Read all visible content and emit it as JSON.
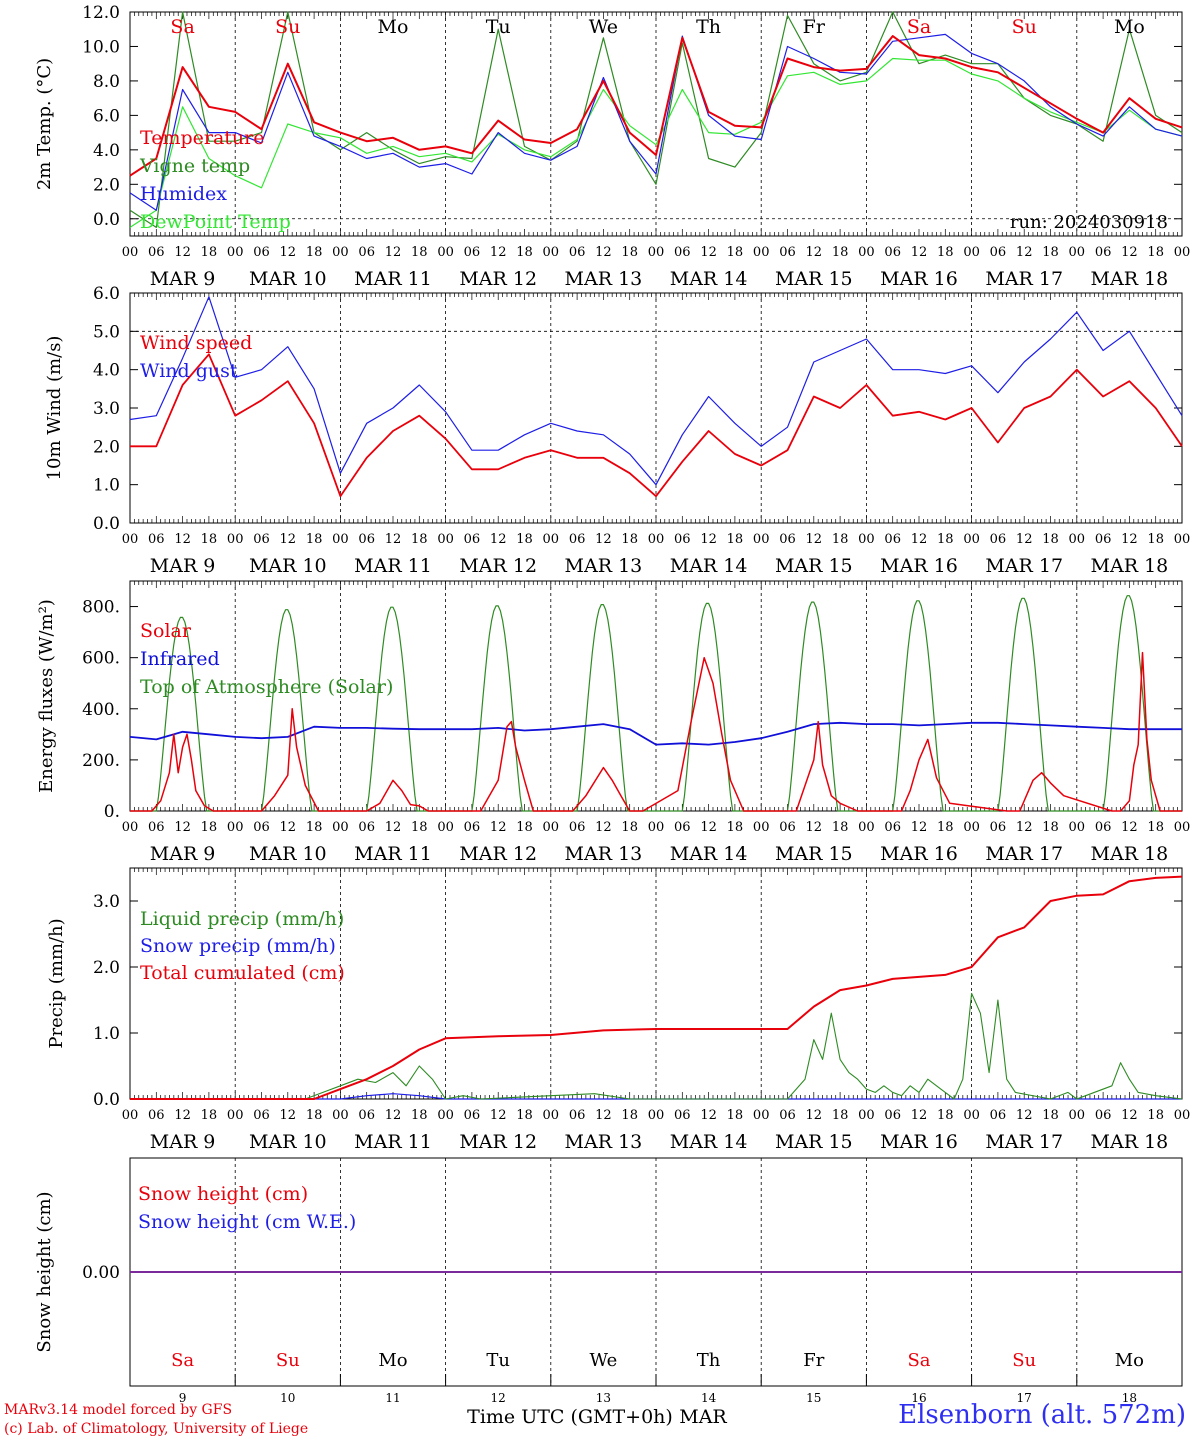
{
  "footer": {
    "credit_line1": "MARv3.14 model forced by GFS",
    "credit_line2": "(c) Lab. of Climatology, University of Liege",
    "xaxis_title": "Time UTC (GMT+0h)",
    "xaxis_month": "MAR",
    "station": "Elsenborn (alt. 572m)",
    "run": "run: 2024030918"
  },
  "colors": {
    "temperature": "#e8000b",
    "vigne": "#2e8b23",
    "humidex": "#1e1ee6",
    "dewpoint": "#33e633",
    "wind_speed": "#e8000b",
    "wind_gust": "#1e1ee6",
    "solar": "#e8000b",
    "infrared": "#1010d8",
    "toa": "#2e8b23",
    "liquid": "#2e8b23",
    "snow_precip": "#1e1ee6",
    "cumulated": "#e8000b",
    "snow_height_line": "#7a2a9a",
    "weekend_day": "#e8000b",
    "weekday": "#000000"
  },
  "axis": {
    "hour_ticks": [
      "00",
      "06",
      "12",
      "18"
    ],
    "final_hour": "00",
    "dates": [
      "MAR  9",
      "MAR 10",
      "MAR 11",
      "MAR 12",
      "MAR 13",
      "MAR 14",
      "MAR 15",
      "MAR 16",
      "MAR 17",
      "MAR 18"
    ],
    "weekdays": [
      "Sa",
      "Su",
      "Mo",
      "Tu",
      "We",
      "Th",
      "Fr",
      "Sa",
      "Su",
      "Mo"
    ],
    "weekend_flags": [
      true,
      true,
      false,
      false,
      false,
      false,
      false,
      true,
      true,
      false
    ],
    "day_numbers": [
      "9",
      "10",
      "11",
      "12",
      "13",
      "14",
      "15",
      "16",
      "17",
      "18"
    ]
  },
  "chart_data": [
    {
      "type": "line",
      "title": "",
      "ylabel": "2m Temp. (°C)",
      "xlabel": "",
      "ylim": [
        -1.0,
        12.0
      ],
      "yticks": [
        "0.0",
        "2.0",
        "4.0",
        "6.0",
        "8.0",
        "10.0",
        "12.0"
      ],
      "reference_line": 0.0,
      "x_unit": "hours since 2024-03-09 00 UTC",
      "x": [
        0,
        6,
        12,
        18,
        24,
        30,
        36,
        42,
        48,
        54,
        60,
        66,
        72,
        78,
        84,
        90,
        96,
        102,
        108,
        114,
        120,
        126,
        132,
        138,
        144,
        150,
        156,
        162,
        168,
        174,
        180,
        186,
        192,
        198,
        204,
        210,
        216,
        222,
        228,
        234,
        240
      ],
      "legend": [
        "Temperature",
        "Vigne temp",
        "Humidex",
        "DewPoint Temp"
      ],
      "series": [
        {
          "name": "Temperature",
          "values": [
            2.5,
            3.5,
            8.8,
            6.5,
            6.2,
            5.2,
            9.0,
            5.6,
            5.0,
            4.5,
            4.7,
            4.0,
            4.2,
            3.8,
            5.7,
            4.6,
            4.4,
            5.2,
            8.0,
            5.0,
            3.7,
            10.5,
            6.2,
            5.4,
            5.3,
            9.3,
            8.8,
            8.6,
            8.7,
            10.6,
            9.5,
            9.3,
            8.8,
            8.5,
            7.6,
            6.7,
            5.8,
            5.0,
            7.0,
            5.8,
            5.3
          ]
        },
        {
          "name": "Vigne temp",
          "values": [
            0.5,
            -0.5,
            12.0,
            4.5,
            4.5,
            5.0,
            12.0,
            5.0,
            4.0,
            5.0,
            4.0,
            3.2,
            3.6,
            3.5,
            11.0,
            4.2,
            3.4,
            4.5,
            10.5,
            4.5,
            2.0,
            10.2,
            3.5,
            3.0,
            5.0,
            11.8,
            9.0,
            8.0,
            8.5,
            12.0,
            9.0,
            9.5,
            9.0,
            9.0,
            7.0,
            6.0,
            5.5,
            4.5,
            11.0,
            6.0,
            5.0
          ]
        },
        {
          "name": "Humidex",
          "values": [
            1.5,
            0.5,
            7.5,
            5.0,
            5.0,
            4.4,
            8.5,
            4.8,
            4.2,
            3.5,
            3.8,
            3.0,
            3.2,
            2.6,
            5.0,
            3.8,
            3.4,
            4.2,
            8.2,
            4.5,
            2.6,
            10.6,
            6.0,
            4.8,
            4.6,
            10.0,
            9.3,
            8.5,
            8.4,
            10.3,
            10.5,
            10.7,
            9.6,
            9.0,
            8.0,
            6.5,
            5.5,
            4.8,
            6.5,
            5.2,
            4.8
          ]
        },
        {
          "name": "DewPoint Temp",
          "values": [
            -0.5,
            0.5,
            6.5,
            3.5,
            2.5,
            1.8,
            5.5,
            5.0,
            4.7,
            3.8,
            4.2,
            3.6,
            3.8,
            3.3,
            4.9,
            4.0,
            3.6,
            4.6,
            7.5,
            5.4,
            4.3,
            7.5,
            5.0,
            4.9,
            5.6,
            8.3,
            8.5,
            7.8,
            8.0,
            9.3,
            9.2,
            9.2,
            8.4,
            8.0,
            7.0,
            6.2,
            5.6,
            5.0,
            6.3,
            5.2,
            4.8
          ]
        }
      ]
    },
    {
      "type": "line",
      "title": "",
      "ylabel": "10m Wind (m/s)",
      "xlabel": "",
      "ylim": [
        0.0,
        6.0
      ],
      "yticks": [
        "0.0",
        "1.0",
        "2.0",
        "3.0",
        "4.0",
        "5.0",
        "6.0"
      ],
      "reference_line": 5.0,
      "x_unit": "hours since 2024-03-09 00 UTC",
      "x": [
        0,
        6,
        12,
        18,
        24,
        30,
        36,
        42,
        48,
        54,
        60,
        66,
        72,
        78,
        84,
        90,
        96,
        102,
        108,
        114,
        120,
        126,
        132,
        138,
        144,
        150,
        156,
        162,
        168,
        174,
        180,
        186,
        192,
        198,
        204,
        210,
        216,
        222,
        228,
        234,
        240
      ],
      "legend": [
        "Wind speed",
        "Wind gust"
      ],
      "series": [
        {
          "name": "Wind speed",
          "values": [
            2.0,
            2.0,
            3.6,
            4.4,
            2.8,
            3.2,
            3.7,
            2.6,
            0.7,
            1.7,
            2.4,
            2.8,
            2.2,
            1.4,
            1.4,
            1.7,
            1.9,
            1.7,
            1.7,
            1.3,
            0.7,
            1.6,
            2.4,
            1.8,
            1.5,
            1.9,
            3.3,
            3.0,
            3.6,
            2.8,
            2.9,
            2.7,
            3.0,
            2.1,
            3.0,
            3.3,
            4.0,
            3.3,
            3.7,
            3.0,
            2.0
          ]
        },
        {
          "name": "Wind gust",
          "values": [
            2.7,
            2.8,
            4.3,
            5.9,
            3.8,
            4.0,
            4.6,
            3.5,
            1.3,
            2.6,
            3.0,
            3.6,
            2.9,
            1.9,
            1.9,
            2.3,
            2.6,
            2.4,
            2.3,
            1.8,
            1.0,
            2.3,
            3.3,
            2.6,
            2.0,
            2.5,
            4.2,
            4.5,
            4.8,
            4.0,
            4.0,
            3.9,
            4.1,
            3.4,
            4.2,
            4.8,
            5.5,
            4.5,
            5.0,
            3.9,
            2.8
          ]
        }
      ]
    },
    {
      "type": "line",
      "title": "",
      "ylabel": "Energy fluxes (W/m²)",
      "xlabel": "",
      "ylim": [
        0,
        900
      ],
      "yticks": [
        "0.",
        "200.",
        "400.",
        "600.",
        "800."
      ],
      "x_unit": "hours since 2024-03-09 00 UTC",
      "legend": [
        "Solar",
        "Infrared",
        "Top of Atmosphere (Solar)"
      ],
      "series": [
        {
          "name": "Solar",
          "x": [
            0,
            5,
            7,
            9,
            10,
            11,
            12,
            13,
            14,
            15,
            17,
            19,
            30,
            33,
            36,
            37,
            38,
            40,
            43,
            54,
            57,
            60,
            62,
            64,
            66,
            68,
            72,
            80,
            84,
            86,
            87,
            88,
            90,
            92,
            101,
            104,
            108,
            110,
            112,
            114,
            117,
            125,
            128,
            131,
            133,
            135,
            137,
            140,
            152,
            155,
            156,
            157,
            158,
            160,
            162,
            166,
            176,
            178,
            180,
            182,
            184,
            187,
            200,
            203,
            205,
            206,
            208,
            210,
            213,
            224,
            226,
            228,
            229,
            230,
            231,
            232,
            233,
            235,
            240
          ],
          "values": [
            0,
            0,
            40,
            150,
            300,
            150,
            250,
            300,
            200,
            80,
            20,
            0,
            0,
            60,
            140,
            400,
            250,
            100,
            0,
            0,
            30,
            120,
            80,
            25,
            20,
            0,
            0,
            0,
            120,
            330,
            350,
            250,
            120,
            0,
            0,
            60,
            170,
            120,
            60,
            0,
            0,
            80,
            350,
            600,
            500,
            300,
            120,
            0,
            0,
            150,
            200,
            350,
            180,
            60,
            30,
            0,
            0,
            80,
            200,
            280,
            130,
            30,
            0,
            0,
            80,
            120,
            150,
            110,
            60,
            0,
            0,
            40,
            180,
            260,
            620,
            280,
            120,
            0,
            0
          ]
        },
        {
          "name": "Infrared",
          "x": [
            0,
            6,
            12,
            18,
            24,
            30,
            36,
            42,
            48,
            54,
            60,
            66,
            72,
            78,
            84,
            90,
            96,
            102,
            108,
            114,
            120,
            126,
            132,
            138,
            144,
            150,
            156,
            162,
            168,
            174,
            180,
            186,
            192,
            198,
            204,
            210,
            216,
            222,
            228,
            234,
            240
          ],
          "values": [
            290,
            280,
            310,
            300,
            290,
            285,
            290,
            330,
            325,
            325,
            322,
            320,
            320,
            320,
            325,
            315,
            320,
            330,
            340,
            320,
            260,
            265,
            260,
            270,
            285,
            310,
            340,
            345,
            340,
            340,
            335,
            340,
            345,
            345,
            340,
            335,
            330,
            325,
            320,
            320,
            320
          ]
        },
        {
          "name": "Top of Atmosphere (Solar)",
          "days": [
            "9",
            "10",
            "11",
            "12",
            "13",
            "14",
            "15",
            "16",
            "17",
            "18"
          ],
          "noon_peak": [
            760,
            790,
            800,
            805,
            810,
            815,
            820,
            825,
            835,
            845
          ],
          "sunrise_utc": 6.0,
          "sunset_utc": 17.5
        }
      ]
    },
    {
      "type": "line",
      "title": "",
      "ylabel": "Precip (mm/h)",
      "xlabel": "",
      "ylim": [
        0.0,
        3.5
      ],
      "yticks": [
        "0.0",
        "1.0",
        "2.0",
        "3.0"
      ],
      "x_unit": "hours since 2024-03-09 00 UTC",
      "legend": [
        "Liquid precip (mm/h)",
        "Snow precip (mm/h)",
        "Total cumulated (cm)"
      ],
      "series": [
        {
          "name": "Liquid precip (mm/h)",
          "x": [
            0,
            40,
            44,
            48,
            52,
            56,
            60,
            63,
            66,
            69,
            72,
            76,
            80,
            96,
            106,
            114,
            150,
            154,
            156,
            158,
            160,
            162,
            164,
            166,
            168,
            170,
            172,
            174,
            176,
            178,
            180,
            182,
            184,
            186,
            188,
            190,
            192,
            194,
            196,
            198,
            200,
            202,
            210,
            214,
            216,
            218,
            224,
            226,
            228,
            230,
            234,
            240
          ],
          "values": [
            0,
            0,
            0.1,
            0.2,
            0.3,
            0.25,
            0.4,
            0.2,
            0.5,
            0.3,
            0,
            0.05,
            0,
            0.05,
            0.08,
            0,
            0,
            0.3,
            0.9,
            0.6,
            1.3,
            0.6,
            0.4,
            0.3,
            0.15,
            0.1,
            0.2,
            0.1,
            0.05,
            0.2,
            0.1,
            0.3,
            0.2,
            0.1,
            0,
            0.3,
            1.6,
            1.3,
            0.4,
            1.5,
            0.3,
            0.1,
            0,
            0.1,
            0,
            0.05,
            0.2,
            0.55,
            0.3,
            0.1,
            0.05,
            0
          ]
        },
        {
          "name": "Snow precip (mm/h)",
          "x": [
            0,
            48,
            54,
            60,
            66,
            72,
            240
          ],
          "values": [
            0,
            0,
            0.05,
            0.08,
            0.05,
            0,
            0
          ]
        },
        {
          "name": "Total cumulated (cm)",
          "x": [
            0,
            42,
            48,
            54,
            60,
            66,
            72,
            84,
            96,
            108,
            120,
            132,
            150,
            156,
            162,
            168,
            174,
            180,
            186,
            192,
            198,
            204,
            210,
            216,
            222,
            228,
            234,
            240
          ],
          "values": [
            0,
            0,
            0.15,
            0.3,
            0.5,
            0.75,
            0.92,
            0.95,
            0.97,
            1.04,
            1.06,
            1.06,
            1.06,
            1.4,
            1.65,
            1.72,
            1.82,
            1.85,
            1.88,
            2.0,
            2.45,
            2.6,
            3.0,
            3.08,
            3.1,
            3.3,
            3.35,
            3.37
          ]
        }
      ]
    },
    {
      "type": "line",
      "title": "",
      "ylabel": "Snow height (cm)",
      "xlabel": "",
      "ylim": [
        -1.0,
        1.0
      ],
      "yticks": [
        "0.00"
      ],
      "x_unit": "hours since 2024-03-09 00 UTC",
      "legend": [
        "Snow height (cm)",
        "Snow height (cm W.E.)"
      ],
      "series": [
        {
          "name": "Snow height (cm)",
          "x": [
            0,
            240
          ],
          "values": [
            0,
            0
          ]
        },
        {
          "name": "Snow height (cm W.E.)",
          "x": [
            0,
            240
          ],
          "values": [
            0,
            0
          ]
        }
      ]
    }
  ]
}
